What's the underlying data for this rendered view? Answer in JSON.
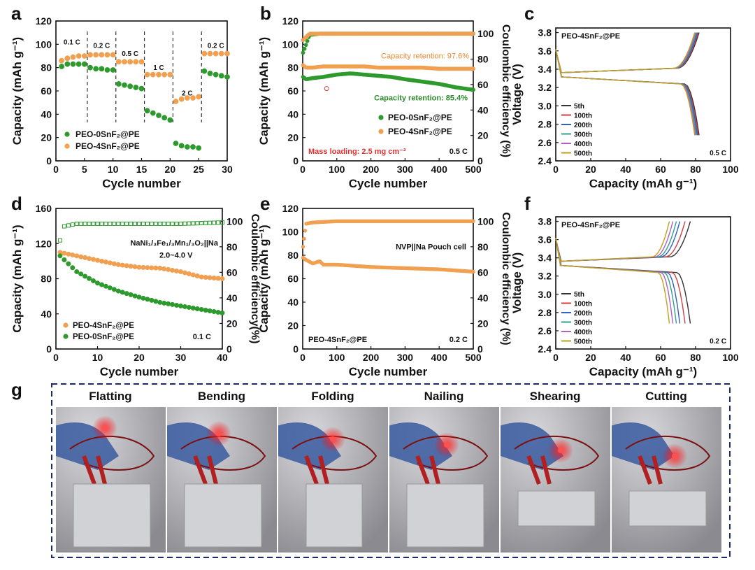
{
  "chart_data": [
    {
      "panel": "a",
      "type": "scatter",
      "xlabel": "Cycle number",
      "ylabel": "Capacity (mAh g⁻¹)",
      "xlim": [
        0,
        30
      ],
      "ylim": [
        0,
        120
      ],
      "xticks": [
        "0",
        "5",
        "10",
        "15",
        "20",
        "25",
        "30"
      ],
      "yticks": [
        "0",
        "20",
        "40",
        "60",
        "80",
        "100",
        "120"
      ],
      "rate_labels": [
        "0.1 C",
        "0.2 C",
        "0.5 C",
        "1 C",
        "2 C",
        "0.2 C"
      ],
      "legend": [
        "PEO-0SnF₂@PE",
        "PEO-4SnF₂@PE"
      ],
      "series": [
        {
          "name": "PEO-0SnF₂@PE",
          "color": "#2e9a2e",
          "x": [
            1,
            2,
            3,
            4,
            5,
            6,
            7,
            8,
            9,
            10,
            11,
            12,
            13,
            14,
            15,
            16,
            17,
            18,
            19,
            20,
            21,
            22,
            23,
            24,
            25,
            26,
            27,
            28,
            29,
            30
          ],
          "y": [
            81,
            83,
            83,
            83,
            83,
            80,
            79,
            79,
            78,
            78,
            66,
            65,
            64,
            63,
            62,
            43,
            41,
            39,
            37,
            35,
            15,
            13,
            12,
            12,
            11,
            77,
            75,
            74,
            73,
            72
          ]
        },
        {
          "name": "PEO-4SnF₂@PE",
          "color": "#f0a050",
          "x": [
            1,
            2,
            3,
            4,
            5,
            6,
            7,
            8,
            9,
            10,
            11,
            12,
            13,
            14,
            15,
            16,
            17,
            18,
            19,
            20,
            21,
            22,
            23,
            24,
            25,
            26,
            27,
            28,
            29,
            30
          ],
          "y": [
            86,
            88,
            89,
            90,
            90,
            91,
            91,
            91,
            91,
            91,
            85,
            85,
            85,
            85,
            85,
            74,
            74,
            74,
            74,
            74,
            51,
            53,
            54,
            54,
            55,
            92,
            92,
            92,
            92,
            92
          ]
        }
      ]
    },
    {
      "panel": "b",
      "type": "scatter",
      "xlabel": "Cycle number",
      "ylabel": "Capacity (mAh g⁻¹)",
      "y2label": "Coulombic efficiency (%)",
      "xlim": [
        0,
        500
      ],
      "ylim": [
        0,
        120
      ],
      "y2lim": [
        0,
        110
      ],
      "xticks": [
        "0",
        "100",
        "200",
        "300",
        "400",
        "500"
      ],
      "yticks": [
        "0",
        "20",
        "40",
        "60",
        "80",
        "100",
        "120"
      ],
      "y2ticks": [
        "0",
        "20",
        "40",
        "60",
        "80",
        "100"
      ],
      "annotations": [
        "Capacity retention: 97.6%",
        "Capacity retention: 85.4%",
        "Mass loading: 2.5 mg cm⁻²",
        "0.5 C"
      ],
      "legend": [
        "PEO-0SnF₂@PE",
        "PEO-4SnF₂@PE"
      ],
      "series": [
        {
          "name": "PEO-0SnF₂@PE capacity",
          "color": "#2e9a2e",
          "x": [
            1,
            10,
            30,
            60,
            100,
            140,
            180,
            220,
            260,
            300,
            350,
            400,
            450,
            500
          ],
          "y": [
            72,
            70,
            71,
            72,
            74,
            75,
            74,
            73,
            72,
            70,
            68,
            66,
            63,
            61
          ]
        },
        {
          "name": "PEO-4SnF₂@PE capacity",
          "color": "#f0a050",
          "x": [
            1,
            10,
            30,
            60,
            100,
            140,
            180,
            220,
            260,
            300,
            350,
            400,
            450,
            500
          ],
          "y": [
            82,
            80,
            80,
            81,
            81,
            81,
            81,
            80,
            80,
            80,
            80,
            79,
            79,
            79
          ]
        },
        {
          "name": "PEO-0SnF₂@PE CE",
          "color": "#2e9a2e",
          "x": [
            1,
            20,
            50,
            100,
            200,
            300,
            400,
            500
          ],
          "y": [
            85,
            99,
            100,
            100,
            100,
            100,
            100,
            100
          ]
        },
        {
          "name": "PEO-4SnF₂@PE CE",
          "color": "#f0a050",
          "x": [
            1,
            20,
            50,
            100,
            200,
            300,
            400,
            500
          ],
          "y": [
            95,
            100,
            100,
            100,
            100,
            100,
            100,
            100
          ]
        }
      ]
    },
    {
      "panel": "c",
      "type": "line",
      "xlabel": "Capacity (mAh g⁻¹)",
      "ylabel": "Voltage (V)",
      "xlim": [
        0,
        100
      ],
      "ylim": [
        2.4,
        3.85
      ],
      "xticks": [
        "0",
        "20",
        "40",
        "60",
        "80",
        "100"
      ],
      "yticks": [
        "2.4",
        "2.6",
        "2.8",
        "3.0",
        "3.2",
        "3.4",
        "3.6",
        "3.8"
      ],
      "title": "PEO-4SnF₂@PE",
      "note": "0.5 C",
      "legend": [
        "5th",
        "100th",
        "200th",
        "300th",
        "400th",
        "500th"
      ],
      "colors": [
        "#333333",
        "#d04040",
        "#3060c0",
        "#30a090",
        "#b060c0",
        "#c0a020"
      ],
      "end_capacity": [
        82,
        81.5,
        81,
        80.5,
        80,
        79.5
      ]
    },
    {
      "panel": "d",
      "type": "scatter",
      "xlabel": "Cycle number",
      "ylabel": "Capacity (mAh g⁻¹)",
      "y2label": "Coulombic efficiency(%)",
      "xlim": [
        0,
        40
      ],
      "ylim": [
        0,
        160
      ],
      "y2lim": [
        0,
        110
      ],
      "xticks": [
        "0",
        "10",
        "20",
        "30",
        "40"
      ],
      "yticks": [
        "0",
        "40",
        "80",
        "120",
        "160"
      ],
      "y2ticks": [
        "0",
        "20",
        "40",
        "60",
        "80",
        "100"
      ],
      "annotations": [
        "NaNi₁/₃Fe₁/₃Mn₁/₃O₂||Na",
        "2.0~4.0 V",
        "0.1 C"
      ],
      "legend": [
        "PEO-4SnF₂@PE",
        "PEO-0SnF₂@PE"
      ],
      "series": [
        {
          "name": "PEO-4SnF₂@PE",
          "color": "#f0a050",
          "x": [
            1,
            5,
            10,
            15,
            20,
            25,
            30,
            35,
            40
          ],
          "y": [
            110,
            106,
            101,
            96,
            93,
            92,
            88,
            82,
            80
          ]
        },
        {
          "name": "PEO-0SnF₂@PE",
          "color": "#2e9a2e",
          "x": [
            1,
            5,
            10,
            15,
            20,
            25,
            30,
            35,
            40
          ],
          "y": [
            106,
            88,
            75,
            66,
            59,
            53,
            49,
            45,
            41
          ]
        },
        {
          "name": "CE",
          "color": "#2e9a2e",
          "x": [
            1,
            2,
            5,
            10,
            20,
            30,
            40
          ],
          "y": [
            85,
            96,
            98,
            98,
            98,
            98,
            99
          ]
        }
      ]
    },
    {
      "panel": "e",
      "type": "scatter",
      "xlabel": "Cycle number",
      "ylabel": "Capacity (mAh g⁻¹)",
      "y2label": "Coulombic efficiency (%)",
      "xlim": [
        0,
        500
      ],
      "ylim": [
        0,
        120
      ],
      "y2lim": [
        0,
        110
      ],
      "xticks": [
        "0",
        "100",
        "200",
        "300",
        "400",
        "500"
      ],
      "yticks": [
        "0",
        "20",
        "40",
        "60",
        "80",
        "100",
        "120"
      ],
      "y2ticks": [
        "0",
        "20",
        "40",
        "60",
        "80",
        "100"
      ],
      "annotations": [
        "NVP||Na Pouch cell",
        "PEO-4SnF₂@PE",
        "0.2 C"
      ],
      "series": [
        {
          "name": "Capacity",
          "color": "#f0a050",
          "x": [
            1,
            10,
            30,
            50,
            60,
            100,
            200,
            300,
            400,
            500
          ],
          "y": [
            78,
            76,
            73,
            75,
            72,
            72,
            70,
            69,
            68,
            66
          ]
        },
        {
          "name": "CE",
          "color": "#f0a050",
          "x": [
            1,
            10,
            30,
            100,
            200,
            300,
            400,
            500
          ],
          "y": [
            80,
            98,
            99,
            100,
            100,
            100,
            100,
            100
          ]
        }
      ]
    },
    {
      "panel": "f",
      "type": "line",
      "xlabel": "Capacity (mAh g⁻¹)",
      "ylabel": "Voltage (V)",
      "xlim": [
        0,
        100
      ],
      "ylim": [
        2.4,
        3.85
      ],
      "xticks": [
        "0",
        "20",
        "40",
        "60",
        "80",
        "100"
      ],
      "yticks": [
        "2.4",
        "2.6",
        "2.8",
        "3.0",
        "3.2",
        "3.4",
        "3.6",
        "3.8"
      ],
      "title": "PEO-4SnF₂@PE",
      "note": "0.2 C",
      "legend": [
        "5th",
        "100th",
        "200th",
        "300th",
        "400th",
        "500th"
      ],
      "colors": [
        "#333333",
        "#d04040",
        "#3060c0",
        "#30a090",
        "#b060c0",
        "#c0a020"
      ],
      "end_capacity": [
        77,
        74,
        71,
        69,
        67,
        65
      ]
    }
  ],
  "panel_labels": [
    "a",
    "b",
    "c",
    "d",
    "e",
    "f",
    "g"
  ],
  "photos": [
    "Flatting",
    "Bending",
    "Folding",
    "Nailing",
    "Shearing",
    "Cutting"
  ]
}
